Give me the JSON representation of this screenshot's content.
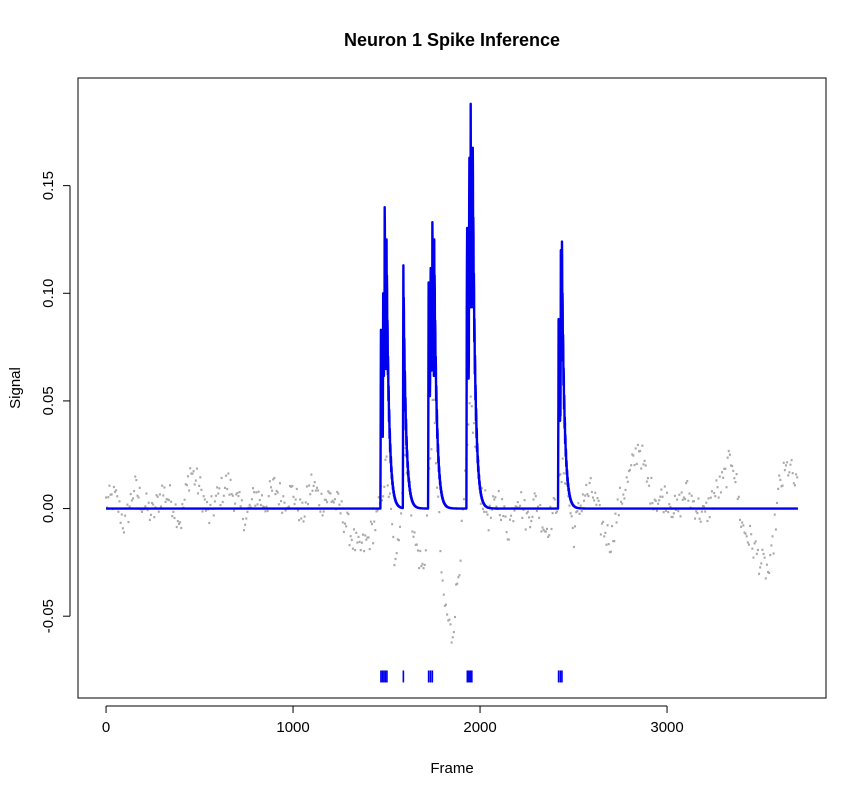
{
  "chart_data": {
    "type": "line",
    "title": "Neuron 1 Spike Inference",
    "xlabel": "Frame",
    "ylabel": "Signal",
    "xlim": [
      -150,
      3850
    ],
    "ylim": [
      -0.088,
      0.2
    ],
    "x_ticks": [
      0,
      1000,
      2000,
      3000
    ],
    "x_tick_labels": [
      "0",
      "1000",
      "2000",
      "3000"
    ],
    "y_ticks": [
      -0.05,
      0.0,
      0.05,
      0.1,
      0.15
    ],
    "y_tick_labels": [
      "-0.05",
      "0.00",
      "0.05",
      "0.10",
      "0.15"
    ],
    "grid": false,
    "frames": 3700,
    "series": [
      {
        "name": "",
        "kind": "points",
        "color": "#a9a9a9",
        "description_points": [
          [
            0,
            0.003
          ],
          [
            50,
            0.005
          ],
          [
            100,
            -0.008
          ],
          [
            150,
            0.01
          ],
          [
            200,
            0.002
          ],
          [
            250,
            -0.003
          ],
          [
            300,
            0.008
          ],
          [
            350,
            0.004
          ],
          [
            400,
            -0.006
          ],
          [
            450,
            0.018
          ],
          [
            500,
            0.01
          ],
          [
            550,
            -0.004
          ],
          [
            600,
            0.006
          ],
          [
            650,
            0.012
          ],
          [
            700,
            0.003
          ],
          [
            750,
            -0.005
          ],
          [
            800,
            0.007
          ],
          [
            850,
            0.002
          ],
          [
            900,
            0.01
          ],
          [
            950,
            0.004
          ],
          [
            1000,
            0.008
          ],
          [
            1050,
            -0.004
          ],
          [
            1100,
            0.012
          ],
          [
            1150,
            0.003
          ],
          [
            1200,
            0.006
          ],
          [
            1250,
            0.0
          ],
          [
            1300,
            -0.01
          ],
          [
            1350,
            -0.02
          ],
          [
            1400,
            -0.015
          ],
          [
            1450,
            -0.005
          ],
          [
            1500,
            0.02
          ],
          [
            1550,
            -0.03
          ],
          [
            1600,
            0.03
          ],
          [
            1650,
            -0.015
          ],
          [
            1700,
            -0.03
          ],
          [
            1750,
            0.05
          ],
          [
            1800,
            -0.04
          ],
          [
            1850,
            -0.06
          ],
          [
            1900,
            -0.015
          ],
          [
            1950,
            0.05
          ],
          [
            2000,
            0.01
          ],
          [
            2050,
            -0.005
          ],
          [
            2100,
            0.005
          ],
          [
            2150,
            -0.01
          ],
          [
            2200,
            0.008
          ],
          [
            2250,
            -0.005
          ],
          [
            2300,
            0.004
          ],
          [
            2350,
            -0.01
          ],
          [
            2400,
            0.0
          ],
          [
            2450,
            0.02
          ],
          [
            2500,
            -0.012
          ],
          [
            2550,
            0.006
          ],
          [
            2600,
            0.008
          ],
          [
            2650,
            -0.008
          ],
          [
            2700,
            -0.015
          ],
          [
            2750,
            0.004
          ],
          [
            2800,
            0.015
          ],
          [
            2850,
            0.03
          ],
          [
            2900,
            0.01
          ],
          [
            2950,
            0.004
          ],
          [
            3000,
            0.006
          ],
          [
            3050,
            -0.002
          ],
          [
            3100,
            0.008
          ],
          [
            3150,
            0.002
          ],
          [
            3200,
            -0.004
          ],
          [
            3250,
            0.006
          ],
          [
            3300,
            0.012
          ],
          [
            3350,
            0.025
          ],
          [
            3400,
            -0.008
          ],
          [
            3450,
            -0.015
          ],
          [
            3500,
            -0.025
          ],
          [
            3550,
            -0.03
          ],
          [
            3600,
            0.01
          ],
          [
            3650,
            0.02
          ],
          [
            3700,
            0.008
          ]
        ]
      },
      {
        "name": "",
        "kind": "line",
        "color": "#0000ee",
        "baseline": 0.0,
        "peaks": [
          [
            1470,
            0.083
          ],
          [
            1482,
            0.1
          ],
          [
            1490,
            0.14
          ],
          [
            1500,
            0.125
          ],
          [
            1590,
            0.113
          ],
          [
            1725,
            0.105
          ],
          [
            1735,
            0.12
          ],
          [
            1745,
            0.133
          ],
          [
            1755,
            0.125
          ],
          [
            1930,
            0.14
          ],
          [
            1942,
            0.175
          ],
          [
            1950,
            0.188
          ],
          [
            1960,
            0.18
          ],
          [
            2420,
            0.088
          ],
          [
            2432,
            0.12
          ],
          [
            2438,
            0.124
          ]
        ]
      }
    ],
    "spike_marks": {
      "color": "#0000ee",
      "y": -0.078,
      "frames": [
        1470,
        1478,
        1486,
        1494,
        1502,
        1590,
        1725,
        1735,
        1745,
        1932,
        1940,
        1948,
        1956,
        2420,
        2430,
        2438
      ]
    }
  }
}
